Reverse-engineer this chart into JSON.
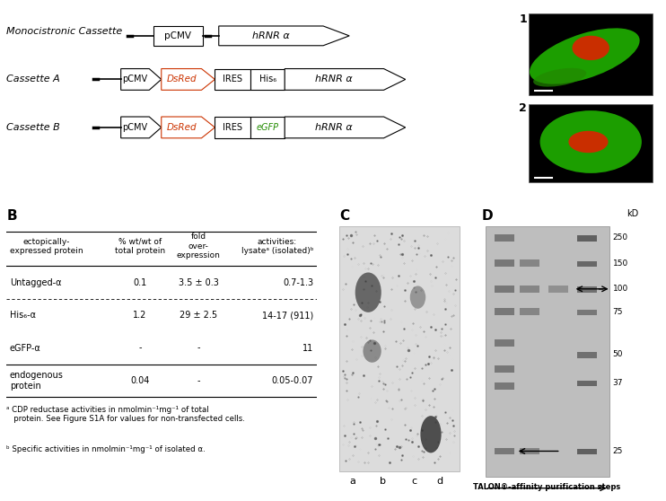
{
  "bg_color": "#ffffff",
  "mono_cassette_label": "Monocistronic Cassette",
  "cassette_A_label": "Cassette A",
  "cassette_B_label": "Cassette B",
  "table_headers": [
    "ectopically-\nexpressed protein",
    "% wt/wt of\ntotal protein",
    "fold\nover-\nexpression",
    "activities:\nlysateᵃ (isolated)ᵇ"
  ],
  "table_rows": [
    [
      "Untagged-α",
      "0.1",
      "3.5 ± 0.3",
      "0.7-1.3"
    ],
    [
      "His₆-α",
      "1.2",
      "29 ± 2.5",
      "14-17 (911)"
    ],
    [
      "eGFP-α",
      "-",
      "-",
      "11"
    ],
    [
      "endogenous\nprotein",
      "0.04",
      "-",
      "0.05-0.07"
    ]
  ],
  "footnote_a": "ᵃ CDP reductase activities in nmolmin⁻¹mg⁻¹ of total\n   protein. See Figure S1A for values for non-transfected cells.",
  "footnote_b": "ᵇ Specific activities in nmolmin⁻¹mg⁻¹ of isolated α.",
  "kd_labels": [
    "250",
    "150",
    "100",
    "75",
    "50",
    "37",
    "25"
  ],
  "gel_xlabel": "TALON®-affinity purification steps",
  "lane_labels": [
    "a",
    "b",
    "c",
    "d"
  ],
  "dsred_color": "#CC3300",
  "egfp_color": "#228B00"
}
